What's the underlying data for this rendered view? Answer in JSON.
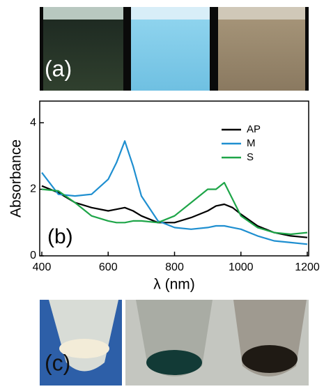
{
  "panel_labels": [
    "(a)",
    "(b)",
    "(c)"
  ],
  "chart_data": {
    "type": "line",
    "ylabel": "Absorbance",
    "xlabel": "λ (nm)",
    "x": [
      400,
      450,
      500,
      550,
      600,
      625,
      650,
      675,
      700,
      750,
      800,
      850,
      900,
      925,
      950,
      975,
      1000,
      1050,
      1100,
      1150,
      1200
    ],
    "series": [
      {
        "name": "AP",
        "color": "#000000",
        "values": [
          2.1,
          1.9,
          1.6,
          1.45,
          1.35,
          1.4,
          1.45,
          1.35,
          1.2,
          1.0,
          1.0,
          1.15,
          1.35,
          1.5,
          1.55,
          1.45,
          1.25,
          0.9,
          0.7,
          0.6,
          0.55
        ]
      },
      {
        "name": "M",
        "color": "#1f8fd0",
        "values": [
          2.5,
          1.85,
          1.8,
          1.85,
          2.3,
          2.8,
          3.45,
          2.7,
          1.8,
          1.05,
          0.85,
          0.8,
          0.85,
          0.9,
          0.9,
          0.85,
          0.8,
          0.6,
          0.45,
          0.4,
          0.35
        ]
      },
      {
        "name": "S",
        "color": "#1ea548",
        "values": [
          2.0,
          1.95,
          1.6,
          1.2,
          1.05,
          1.0,
          1.0,
          1.05,
          1.05,
          1.0,
          1.2,
          1.6,
          2.0,
          2.0,
          2.2,
          1.7,
          1.2,
          0.85,
          0.7,
          0.65,
          0.7
        ]
      }
    ],
    "xlim": [
      400,
      1200
    ],
    "xticks": [
      400,
      600,
      800,
      1000,
      1200
    ],
    "ylim": [
      0,
      4.65
    ],
    "yticks": [
      0,
      2,
      4
    ],
    "legend": "upper right"
  }
}
